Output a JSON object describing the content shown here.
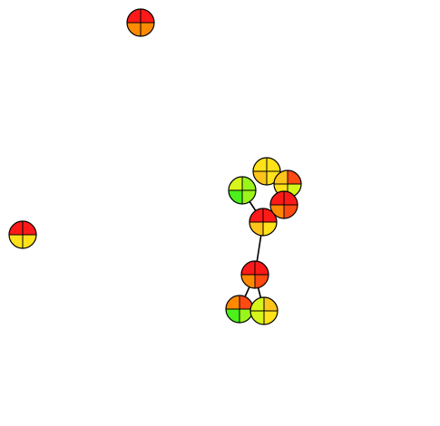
{
  "palette": {
    "red": "#ff1a1a",
    "red_orange": "#ff4a12",
    "orange": "#ff8a00",
    "yellow_orange": "#ffc41a",
    "yellow": "#ffe21a",
    "yellow_green": "#d6f51a",
    "lime": "#9af51a",
    "green": "#4cf01a",
    "stroke": "#000000"
  },
  "nodes": [
    {
      "id": "n1",
      "quadrants": [
        "red",
        "red",
        "orange",
        "orange"
      ]
    },
    {
      "id": "n2",
      "quadrants": [
        "red",
        "red",
        "yellow",
        "yellow"
      ]
    },
    {
      "id": "n3",
      "quadrants": [
        "yellow",
        "yellow",
        "yellow_orange",
        "yellow"
      ]
    },
    {
      "id": "n4",
      "quadrants": [
        "yellow_orange",
        "red_orange",
        "yellow",
        "yellow_green"
      ]
    },
    {
      "id": "n5",
      "quadrants": [
        "yellow_green",
        "lime",
        "green",
        "lime"
      ]
    },
    {
      "id": "n6",
      "quadrants": [
        "red",
        "red",
        "orange",
        "red_orange"
      ]
    },
    {
      "id": "n7",
      "quadrants": [
        "red",
        "red",
        "yellow_orange",
        "yellow"
      ]
    },
    {
      "id": "n8",
      "quadrants": [
        "red",
        "red",
        "orange",
        "red_orange"
      ]
    },
    {
      "id": "n9",
      "quadrants": [
        "orange",
        "red_orange",
        "green",
        "lime"
      ]
    },
    {
      "id": "n10",
      "quadrants": [
        "yellow_green",
        "yellow_orange",
        "yellow_green",
        "yellow"
      ]
    }
  ],
  "edges": [
    {
      "from": "n5",
      "to": "n7"
    },
    {
      "from": "n7",
      "to": "n8"
    },
    {
      "from": "n8",
      "to": "n9"
    },
    {
      "from": "n8",
      "to": "n10"
    }
  ]
}
